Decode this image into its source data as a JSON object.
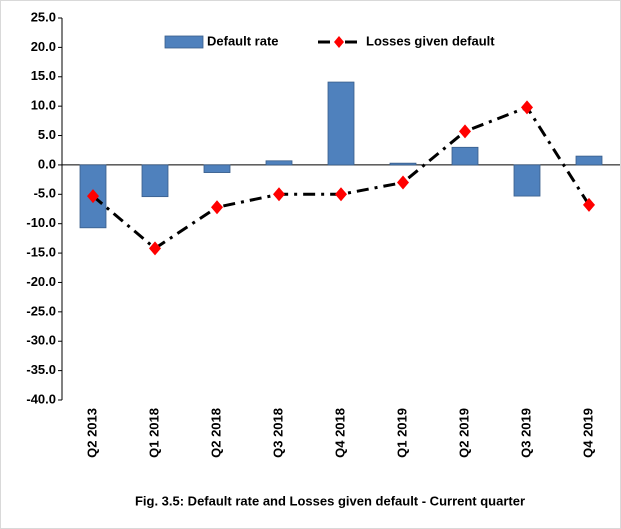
{
  "chart_data": {
    "type": "bar_line",
    "caption": "Fig. 3.5: Default rate and Losses given default - Current quarter",
    "categories": [
      "Q2 2013",
      "Q1 2018",
      "Q2 2018",
      "Q3 2018",
      "Q4 2018",
      "Q1 2019",
      "Q2 2019",
      "Q3 2019",
      "Q4 2019"
    ],
    "series": [
      {
        "name": "Default rate",
        "type": "bar",
        "color": "#4f81bd",
        "values": [
          -10.7,
          -5.4,
          -1.3,
          0.7,
          14.1,
          0.3,
          3.0,
          -5.3,
          1.5
        ]
      },
      {
        "name": "Losses given default",
        "type": "line",
        "color": "#000000",
        "marker_color": "#ff0000",
        "values": [
          -5.3,
          -14.2,
          -7.2,
          -5.0,
          -5.0,
          -3.0,
          5.7,
          9.8,
          -6.8
        ]
      }
    ],
    "ylim": [
      -40,
      25
    ],
    "yticks": [
      {
        "value": 25,
        "label": "25.0"
      },
      {
        "value": 20,
        "label": "20.0"
      },
      {
        "value": 15,
        "label": "15.0"
      },
      {
        "value": 10,
        "label": "10.0"
      },
      {
        "value": 5,
        "label": "5.0"
      },
      {
        "value": 0,
        "label": "0.0"
      },
      {
        "value": -5,
        "label": "-5.0"
      },
      {
        "value": -10,
        "label": "-10.0"
      },
      {
        "value": -15,
        "label": "-15.0"
      },
      {
        "value": -20,
        "label": "-20.0"
      },
      {
        "value": -25,
        "label": "-25.0"
      },
      {
        "value": -30,
        "label": "-30.0"
      },
      {
        "value": -35,
        "label": "-35.0"
      },
      {
        "value": -40,
        "label": "-40.0"
      }
    ],
    "legend": "top"
  }
}
